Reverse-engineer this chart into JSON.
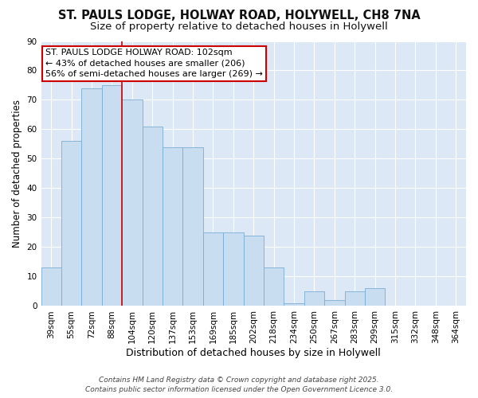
{
  "title": "ST. PAULS LODGE, HOLWAY ROAD, HOLYWELL, CH8 7NA",
  "subtitle": "Size of property relative to detached houses in Holywell",
  "xlabel": "Distribution of detached houses by size in Holywell",
  "ylabel": "Number of detached properties",
  "bar_values": [
    13,
    56,
    74,
    75,
    70,
    61,
    54,
    54,
    25,
    25,
    24,
    13,
    1,
    5,
    2,
    5,
    6,
    0,
    0,
    0
  ],
  "bar_labels": [
    "39sqm",
    "55sqm",
    "72sqm",
    "88sqm",
    "104sqm",
    "120sqm",
    "137sqm",
    "153sqm",
    "169sqm",
    "185sqm",
    "202sqm",
    "218sqm",
    "234sqm",
    "250sqm",
    "267sqm",
    "283sqm",
    "299sqm",
    "315sqm",
    "332sqm",
    "348sqm",
    "364sqm"
  ],
  "bar_color": "#c9ddf0",
  "bar_edge_color": "#7aadd4",
  "figure_bg": "#ffffff",
  "axes_bg": "#dce8f5",
  "grid_color": "#ffffff",
  "vline_color": "#cc0000",
  "vline_x_index": 4,
  "annotation_text": "ST. PAULS LODGE HOLWAY ROAD: 102sqm\n← 43% of detached houses are smaller (206)\n56% of semi-detached houses are larger (269) →",
  "annotation_box_color": "#ffffff",
  "annotation_border_color": "#cc0000",
  "ylim": [
    0,
    90
  ],
  "yticks": [
    0,
    10,
    20,
    30,
    40,
    50,
    60,
    70,
    80,
    90
  ],
  "footer": "Contains HM Land Registry data © Crown copyright and database right 2025.\nContains public sector information licensed under the Open Government Licence 3.0.",
  "title_fontsize": 10.5,
  "subtitle_fontsize": 9.5,
  "xlabel_fontsize": 9,
  "ylabel_fontsize": 8.5,
  "tick_fontsize": 7.5,
  "annotation_fontsize": 8,
  "footer_fontsize": 6.5
}
